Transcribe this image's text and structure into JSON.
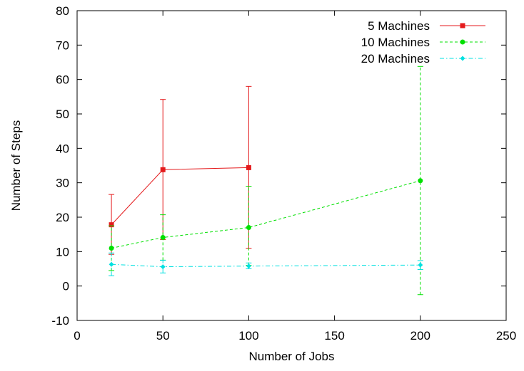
{
  "chart_data": {
    "type": "line",
    "title": "",
    "xlabel": "Number of Jobs",
    "ylabel": "Number of Steps",
    "xlim": [
      0,
      250
    ],
    "ylim": [
      -10,
      80
    ],
    "xticks": [
      0,
      50,
      100,
      150,
      200,
      250
    ],
    "yticks": [
      -10,
      0,
      10,
      20,
      30,
      40,
      50,
      60,
      70,
      80
    ],
    "grid": false,
    "legend_position": "top-right",
    "series": [
      {
        "name": "5 Machines",
        "color": "#e41a1c",
        "marker": "square",
        "dash": "solid",
        "x": [
          20,
          50,
          100
        ],
        "y": [
          17.8,
          33.8,
          34.4
        ],
        "err_low": [
          9.2,
          13.5,
          11.0
        ],
        "err_high": [
          26.6,
          54.2,
          58.0
        ]
      },
      {
        "name": "10 Machines",
        "color": "#00e000",
        "marker": "circle",
        "dash": "dashed",
        "x": [
          20,
          50,
          100,
          200
        ],
        "y": [
          11.0,
          14.1,
          17.0,
          30.6
        ],
        "err_low": [
          4.5,
          7.5,
          6.0,
          -2.5
        ],
        "err_high": [
          17.5,
          20.7,
          29.0,
          63.8
        ]
      },
      {
        "name": "20 Machines",
        "color": "#00e0e0",
        "marker": "diamond",
        "dash": "dashdot",
        "x": [
          20,
          50,
          100,
          200
        ],
        "y": [
          6.3,
          5.6,
          5.8,
          6.1
        ],
        "err_low": [
          3.0,
          3.8,
          5.0,
          4.8
        ],
        "err_high": [
          9.6,
          7.5,
          6.7,
          7.4
        ]
      }
    ]
  }
}
